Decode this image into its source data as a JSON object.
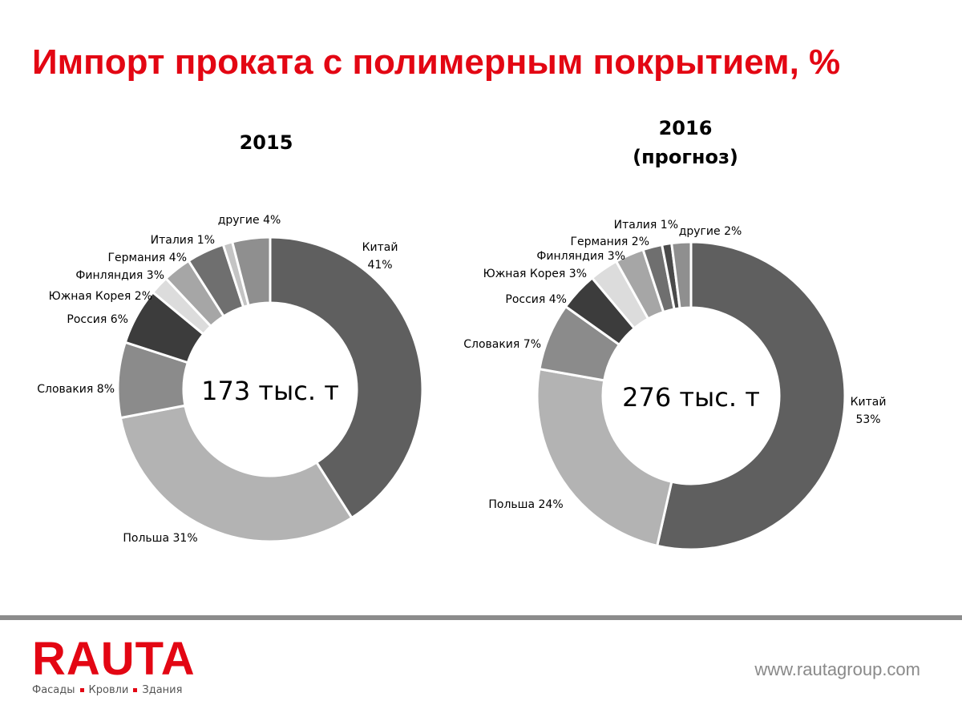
{
  "title": "Импорт проката с полимерным покрытием, %",
  "chart_data": [
    {
      "type": "pie",
      "variant": "donut",
      "title": "2015",
      "subtitle": "",
      "center_label": "173 тыс. т",
      "slices": [
        {
          "name": "Китай",
          "value": 41,
          "label": "41%",
          "color": "#5f5f5f"
        },
        {
          "name": "Польша",
          "value": 31,
          "label": "31%",
          "color": "#b3b3b3"
        },
        {
          "name": "Словакия",
          "value": 8,
          "label": "8%",
          "color": "#8b8b8b"
        },
        {
          "name": "Россия",
          "value": 6,
          "label": "6%",
          "color": "#3c3c3c"
        },
        {
          "name": "Южная Корея",
          "value": 2,
          "label": "2%",
          "color": "#dcdcdc"
        },
        {
          "name": "Финляндия",
          "value": 3,
          "label": "3%",
          "color": "#a6a6a6"
        },
        {
          "name": "Германия",
          "value": 4,
          "label": "4%",
          "color": "#6f6f6f"
        },
        {
          "name": "Италия",
          "value": 1,
          "label": "1%",
          "color": "#c4c4c4"
        },
        {
          "name": "другие",
          "value": 4,
          "label": "4%",
          "color": "#8f8f8f"
        }
      ]
    },
    {
      "type": "pie",
      "variant": "donut",
      "title": "2016",
      "subtitle": "(прогноз)",
      "center_label": "276 тыс. т",
      "slices": [
        {
          "name": "Китай",
          "value": 53,
          "label": "53%",
          "color": "#5f5f5f"
        },
        {
          "name": "Польша",
          "value": 24,
          "label": "24%",
          "color": "#b3b3b3"
        },
        {
          "name": "Словакия",
          "value": 7,
          "label": "7%",
          "color": "#8b8b8b"
        },
        {
          "name": "Россия",
          "value": 4,
          "label": "4%",
          "color": "#3c3c3c"
        },
        {
          "name": "Южная Корея",
          "value": 3,
          "label": "3%",
          "color": "#dcdcdc"
        },
        {
          "name": "Финляндия",
          "value": 3,
          "label": "3%",
          "color": "#a6a6a6"
        },
        {
          "name": "Германия",
          "value": 2,
          "label": "2%",
          "color": "#6f6f6f"
        },
        {
          "name": "Италия",
          "value": 1,
          "label": "1%",
          "color": "#4a4a4a"
        },
        {
          "name": "другие",
          "value": 2,
          "label": "2%",
          "color": "#8f8f8f"
        }
      ]
    }
  ],
  "footer": {
    "logo_text": "RAUTA",
    "tagline": [
      "Фасады",
      "Кровли",
      "Здания"
    ],
    "url": "www.rautagroup.com"
  },
  "colors": {
    "brand_red": "#e30613",
    "rule_gray": "#8c8c8c"
  }
}
